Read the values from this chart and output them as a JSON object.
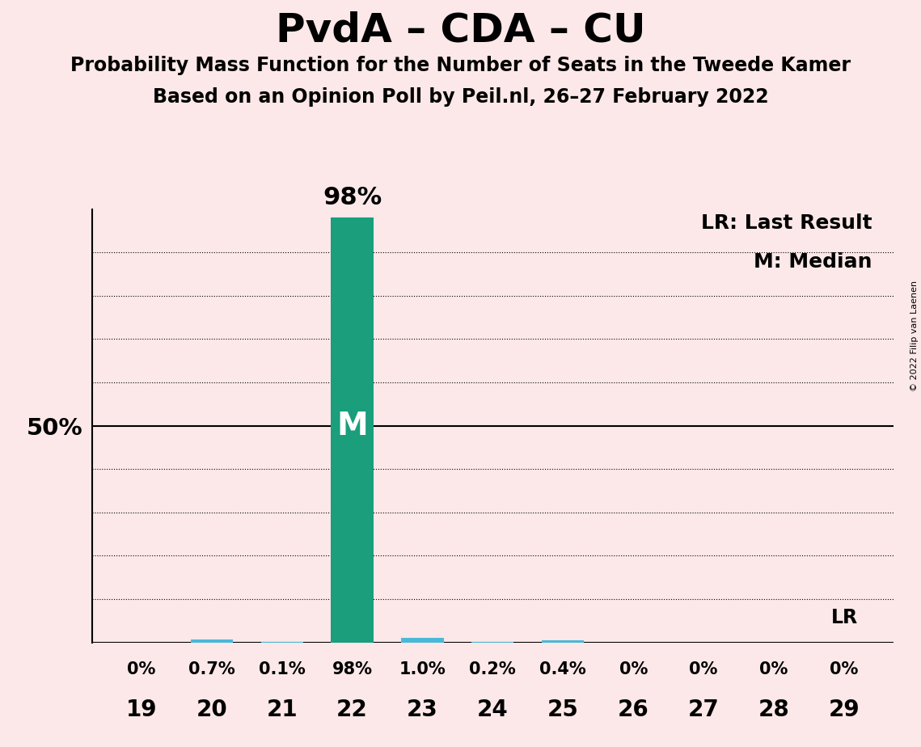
{
  "title": "PvdA – CDA – CU",
  "subtitle1": "Probability Mass Function for the Number of Seats in the Tweede Kamer",
  "subtitle2": "Based on an Opinion Poll by Peil.nl, 26–27 February 2022",
  "copyright": "© 2022 Filip van Laenen",
  "categories": [
    19,
    20,
    21,
    22,
    23,
    24,
    25,
    26,
    27,
    28,
    29
  ],
  "values": [
    0.0,
    0.7,
    0.1,
    98.0,
    1.0,
    0.2,
    0.4,
    0.0,
    0.0,
    0.0,
    0.0
  ],
  "labels": [
    "0%",
    "0.7%",
    "0.1%",
    "98%",
    "1.0%",
    "0.2%",
    "0.4%",
    "0%",
    "0%",
    "0%",
    "0%"
  ],
  "median_bar": 22,
  "lr_bar": 29,
  "teal_color": "#1a9e7c",
  "small_bar_color": "#4ab8d8",
  "small_bar_seats": [
    20,
    23
  ],
  "background_color": "#fce8e8",
  "title_fontsize": 36,
  "subtitle_fontsize": 18,
  "ylim": [
    0,
    100
  ],
  "ylabel_50": "50%",
  "legend_lr": "LR: Last Result",
  "legend_m": "M: Median",
  "lr_label": "LR",
  "dotted_lines": [
    10,
    20,
    30,
    40,
    60,
    70,
    80,
    90
  ],
  "solid_line": 50
}
